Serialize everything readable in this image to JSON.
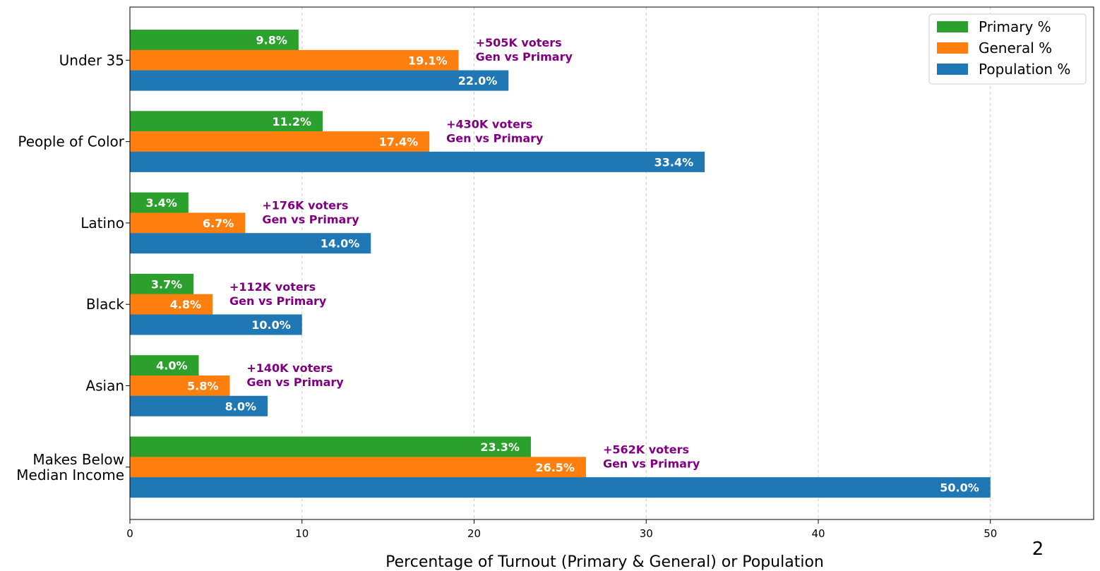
{
  "chart_data": {
    "type": "bar",
    "orientation": "horizontal",
    "categories": [
      "Under 35",
      "People of Color",
      "Latino",
      "Black",
      "Asian",
      "Makes Below Median Income"
    ],
    "category_lines": [
      [
        "Under 35"
      ],
      [
        "People of Color"
      ],
      [
        "Latino"
      ],
      [
        "Black"
      ],
      [
        "Asian"
      ],
      [
        "Makes Below",
        "Median Income"
      ]
    ],
    "series": [
      {
        "name": "Primary %",
        "color": "#2ca02c",
        "values": [
          9.8,
          11.2,
          3.4,
          3.7,
          4.0,
          23.3
        ],
        "labels": [
          "9.8%",
          "11.2%",
          "3.4%",
          "3.7%",
          "4.0%",
          "23.3%"
        ]
      },
      {
        "name": "General %",
        "color": "#ff7f0e",
        "values": [
          19.1,
          17.4,
          6.7,
          4.8,
          5.8,
          26.5
        ],
        "labels": [
          "19.1%",
          "17.4%",
          "6.7%",
          "4.8%",
          "5.8%",
          "26.5%"
        ]
      },
      {
        "name": "Population %",
        "color": "#1f77b4",
        "values": [
          22.0,
          33.4,
          14.0,
          10.0,
          8.0,
          50.0
        ],
        "labels": [
          "22.0%",
          "33.4%",
          "14.0%",
          "10.0%",
          "8.0%",
          "50.0%"
        ]
      }
    ],
    "annotations": [
      [
        "+505K voters",
        "Gen vs Primary"
      ],
      [
        "+430K voters",
        "Gen vs Primary"
      ],
      [
        "+176K voters",
        "Gen vs Primary"
      ],
      [
        "+112K voters",
        "Gen vs Primary"
      ],
      [
        "+140K voters",
        "Gen vs Primary"
      ],
      [
        "+562K voters",
        "Gen vs Primary"
      ]
    ],
    "xlabel": "Percentage of Turnout (Primary & General) or Population",
    "ylabel": "",
    "xlim": [
      0,
      56
    ],
    "xticks": [
      0,
      10,
      20,
      30,
      40,
      50
    ],
    "grid": "x-dashed",
    "legend_position": "top-right",
    "annotation_color": "#800080"
  },
  "page_number": "2"
}
